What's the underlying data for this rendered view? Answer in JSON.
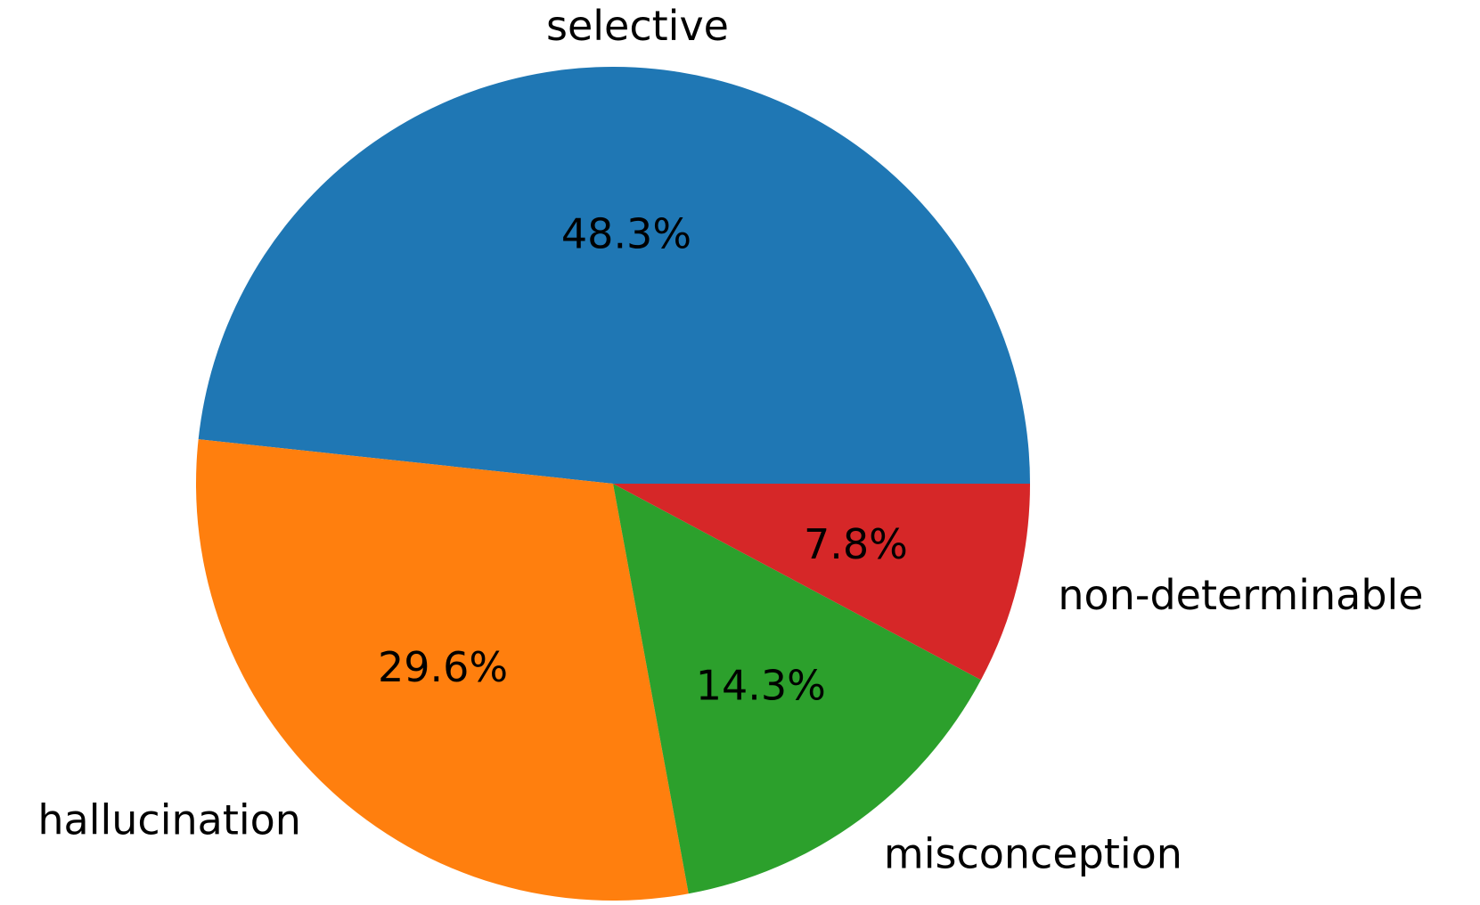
{
  "chart_data": {
    "type": "pie",
    "title": "",
    "slices": [
      {
        "label": "selective",
        "value": 48.3,
        "pct_label": "48.3%",
        "color": "#1f77b4"
      },
      {
        "label": "hallucination",
        "value": 29.6,
        "pct_label": "29.6%",
        "color": "#ff7f0e"
      },
      {
        "label": "misconception",
        "value": 14.3,
        "pct_label": "14.3%",
        "color": "#2ca02c"
      },
      {
        "label": "non-determinable",
        "value": 7.8,
        "pct_label": "7.8%",
        "color": "#d62728"
      }
    ],
    "start_angle_deg": 0,
    "direction": "counterclockwise",
    "legend": "none"
  }
}
